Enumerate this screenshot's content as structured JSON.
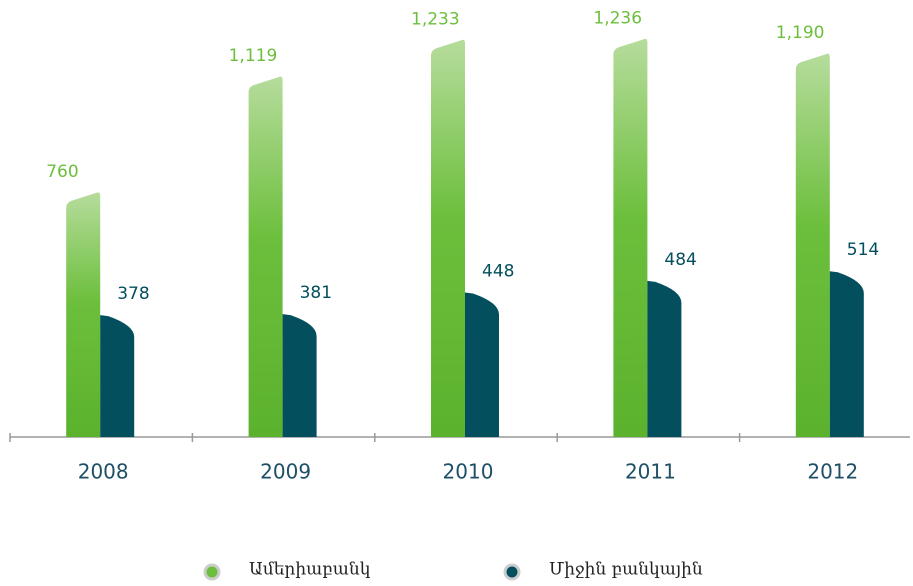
{
  "chart_data": {
    "type": "bar",
    "categories": [
      "2008",
      "2009",
      "2010",
      "2011",
      "2012"
    ],
    "series": [
      {
        "name": "Ամերիաբանկ",
        "color": "#6cbf3c",
        "values": [
          760,
          1119,
          1233,
          1236,
          1190
        ],
        "value_labels": [
          "760",
          "1,119",
          "1,233",
          "1,236",
          "1,190"
        ]
      },
      {
        "name": "Միջին բանկային",
        "color": "#034f5d",
        "values": [
          378,
          381,
          448,
          484,
          514
        ]
      }
    ]
  }
}
